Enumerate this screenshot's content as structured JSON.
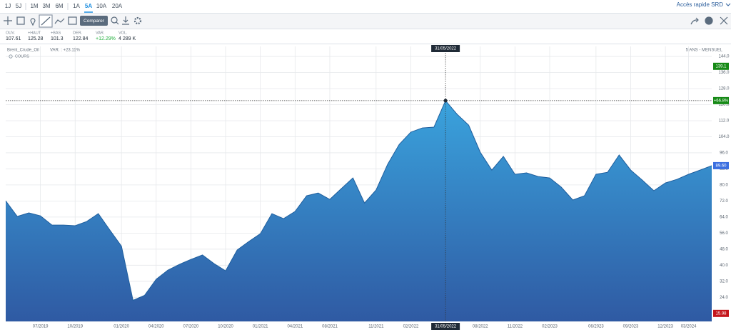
{
  "toolbar": {
    "periods": [
      "1J",
      "5J",
      "1M",
      "3M",
      "6M",
      "1A",
      "5A",
      "10A",
      "20A"
    ],
    "active": "5A",
    "quick_access": "Accès rapide SRD",
    "compare_button": "Comparer"
  },
  "stats": [
    {
      "label": "OUV.",
      "value": "107.61"
    },
    {
      "label": "+HAUT",
      "value": "125.28"
    },
    {
      "label": "+BAS",
      "value": "101.3"
    },
    {
      "label": "DER.",
      "value": "122.84"
    },
    {
      "label": "VAR.",
      "value": "+12.29%",
      "color": "#1fae3a"
    },
    {
      "label": "VOL.",
      "value": "4 289 K"
    }
  ],
  "chart_data": {
    "type": "area",
    "instrument": "Brent_Crude_Oil",
    "variation": "VAR. : +23.11%",
    "period_label": "5 ANS - MENSUEL",
    "series_label": "COURS",
    "categories": [
      null,
      null,
      null,
      "07/2019",
      null,
      null,
      "10/2019",
      null,
      null,
      null,
      "01/2020",
      null,
      null,
      "04/2020",
      null,
      null,
      "07/2020",
      null,
      null,
      "10/2020",
      null,
      null,
      "01/2021",
      null,
      null,
      "04/2021",
      null,
      null,
      "08/2021",
      null,
      null,
      null,
      "11/2021",
      null,
      null,
      "02/2022",
      null,
      null,
      null,
      null,
      null,
      "08/2022",
      null,
      null,
      "11/2022",
      null,
      null,
      "02/2023",
      null,
      null,
      null,
      "06/2023",
      null,
      null,
      "09/2023",
      null,
      null,
      "12/2023",
      null,
      "03/2024",
      null,
      null
    ],
    "values": [
      72.1,
      64.3,
      66.1,
      64.6,
      60.0,
      60.0,
      59.7,
      61.8,
      65.7,
      57.5,
      49.5,
      22.5,
      25.0,
      33.0,
      37.5,
      40.4,
      42.9,
      45.1,
      40.8,
      37.2,
      47.6,
      51.8,
      55.7,
      65.7,
      63.2,
      66.8,
      74.6,
      76.0,
      72.8,
      78.2,
      83.5,
      71.0,
      77.5,
      90.3,
      100.2,
      106.3,
      108.4,
      108.8,
      122.0,
      115.2,
      109.8,
      96.3,
      87.4,
      94.2,
      85.3,
      86.0,
      84.2,
      83.5,
      78.9,
      72.5,
      74.6,
      85.3,
      86.3,
      94.9,
      87.4,
      82.4,
      77.1,
      81.0,
      82.8,
      85.3,
      87.4,
      89.6
    ],
    "color": "#1f5f9e",
    "fill_top": "#3aa3dd",
    "fill_bottom": "#2f5aa3",
    "ylim": [
      12.0,
      149.0
    ],
    "yticks": [
      {
        "value": 144,
        "label": "144.0"
      },
      {
        "value": 136,
        "label": "136.0"
      },
      {
        "value": 128,
        "label": "128.0"
      },
      {
        "value": 120,
        "label": "120.0"
      },
      {
        "value": 112,
        "label": "112.0"
      },
      {
        "value": 104,
        "label": "104.0"
      },
      {
        "value": 96,
        "label": "96.0"
      },
      {
        "value": 88,
        "label": "88.0"
      },
      {
        "value": 80,
        "label": "80.0"
      },
      {
        "value": 72,
        "label": "72.0"
      },
      {
        "value": 64,
        "label": "64.0"
      },
      {
        "value": 56,
        "label": "56.0"
      },
      {
        "value": 48,
        "label": "48.0"
      },
      {
        "value": 40,
        "label": "40.0"
      },
      {
        "value": 32,
        "label": "32.0"
      },
      {
        "value": 24,
        "label": "24.0"
      }
    ],
    "price_labels": [
      {
        "value": 139.1,
        "label": "139.1",
        "color": "#168a16"
      },
      {
        "value": 89.6,
        "label": "89.60",
        "color": "#3b6fe0"
      },
      {
        "value": 15.98,
        "label": "15.98",
        "color": "#c4161c"
      }
    ],
    "crosshair": {
      "index": 38,
      "date": "31/05/2022",
      "change": "+66.8%",
      "color": "#168a16"
    },
    "grid": true
  }
}
